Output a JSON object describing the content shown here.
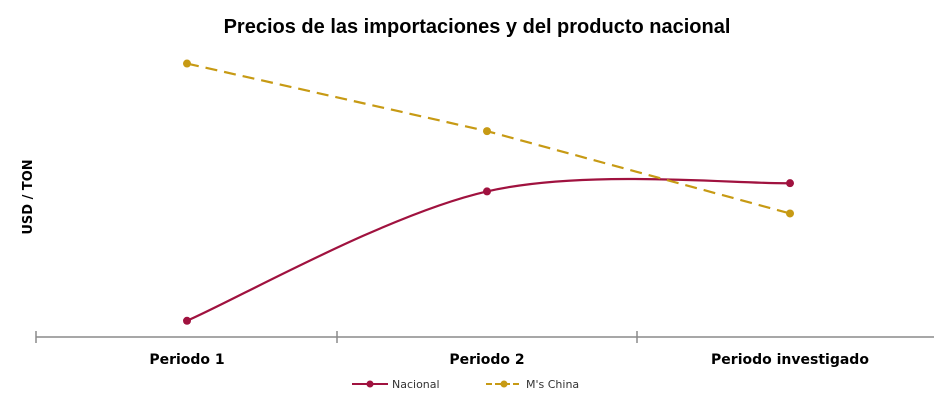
{
  "chart_data": {
    "type": "line",
    "title": "Precios de las importaciones y del producto nacional",
    "ylabel": "USD / TON",
    "xlabel": "",
    "categories": [
      "Periodo 1",
      "Periodo 2",
      "Periodo investigado"
    ],
    "y_range": [
      0,
      100
    ],
    "y_tick_labels_shown": false,
    "grid": false,
    "legend_position": "bottom-center",
    "series": [
      {
        "name": "Nacional",
        "values": [
          4.5,
          48.5,
          51.3
        ],
        "color": "#a0123f",
        "style": "solid",
        "smooth": true
      },
      {
        "name": "M's China",
        "values": [
          92,
          69,
          41
        ],
        "color": "#c79a14",
        "style": "dashed",
        "smooth": false
      }
    ]
  }
}
